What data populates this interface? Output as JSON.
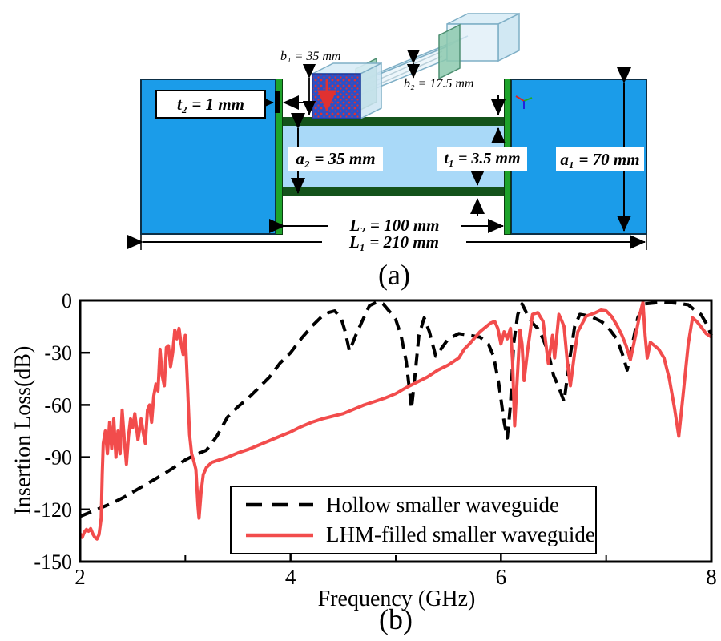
{
  "figure": {
    "caption_a": "(a)",
    "caption_b": "(b)"
  },
  "diagram": {
    "labels": {
      "t2": "t₂ = 1 mm",
      "b1": "b₁ = 35 mm",
      "b2": "b₂ = 17.5 mm",
      "a2": "a₂ = 35 mm",
      "t1": "t₁ = 3.5 mm",
      "a1": "a₁ = 70 mm",
      "L2": "L₂ = 100 mm",
      "L1": "L₁ = 210 mm"
    },
    "colors": {
      "outer_waveguide_blue": "#1b9ce9",
      "channel_light_blue": "#a9d9f8",
      "plate_green": "#1ea32b",
      "bar_dark_green": "#14531b",
      "inset_box_fill": "#d8ecf6",
      "inset_box_edge": "#7fafc6",
      "inset_flange_green": "#8cc9ae",
      "inset_port_face_blue": "#2b50c8",
      "inset_port_dots_red": "#e03131"
    }
  },
  "chart_data": {
    "type": "line",
    "title": "",
    "xlabel": "Frequency (GHz)",
    "ylabel": "Insertion Loss(dB)",
    "xlim": [
      2,
      8
    ],
    "ylim": [
      -150,
      0
    ],
    "xticks": [
      2,
      4,
      6,
      8
    ],
    "xticks_minor": [
      3,
      5,
      7
    ],
    "yticks": [
      0,
      -30,
      -60,
      -90,
      -120,
      -150
    ],
    "grid": false,
    "legend_position": "inside lower-center",
    "series": [
      {
        "name": "Hollow smaller waveguide",
        "color": "#000000",
        "style": "dashed",
        "points": [
          [
            2.0,
            -124
          ],
          [
            2.1,
            -121.5
          ],
          [
            2.2,
            -119
          ],
          [
            2.3,
            -116.5
          ],
          [
            2.4,
            -113.5
          ],
          [
            2.5,
            -110
          ],
          [
            2.6,
            -106.5
          ],
          [
            2.7,
            -103
          ],
          [
            2.8,
            -99.5
          ],
          [
            2.9,
            -95.5
          ],
          [
            3.0,
            -91.5
          ],
          [
            3.1,
            -88.5
          ],
          [
            3.2,
            -86
          ],
          [
            3.3,
            -78
          ],
          [
            3.4,
            -67
          ],
          [
            3.5,
            -61
          ],
          [
            3.6,
            -56
          ],
          [
            3.7,
            -50
          ],
          [
            3.8,
            -44
          ],
          [
            3.9,
            -36
          ],
          [
            4.0,
            -30
          ],
          [
            4.1,
            -22
          ],
          [
            4.2,
            -15
          ],
          [
            4.3,
            -9
          ],
          [
            4.36,
            -7
          ],
          [
            4.42,
            -6
          ],
          [
            4.48,
            -10
          ],
          [
            4.52,
            -18
          ],
          [
            4.56,
            -29
          ],
          [
            4.62,
            -20
          ],
          [
            4.68,
            -12
          ],
          [
            4.75,
            -3
          ],
          [
            4.82,
            -1
          ],
          [
            4.88,
            -2
          ],
          [
            4.95,
            -7
          ],
          [
            5.0,
            -11
          ],
          [
            5.05,
            -20
          ],
          [
            5.1,
            -35
          ],
          [
            5.15,
            -62
          ],
          [
            5.18,
            -45
          ],
          [
            5.22,
            -20
          ],
          [
            5.27,
            -10
          ],
          [
            5.32,
            -18
          ],
          [
            5.38,
            -32
          ],
          [
            5.44,
            -27
          ],
          [
            5.5,
            -22
          ],
          [
            5.6,
            -19
          ],
          [
            5.7,
            -20
          ],
          [
            5.8,
            -21
          ],
          [
            5.88,
            -25
          ],
          [
            5.93,
            -32
          ],
          [
            5.98,
            -48
          ],
          [
            6.03,
            -70
          ],
          [
            6.06,
            -79
          ],
          [
            6.09,
            -60
          ],
          [
            6.12,
            -25
          ],
          [
            6.16,
            -8
          ],
          [
            6.2,
            -2
          ],
          [
            6.25,
            -8
          ],
          [
            6.3,
            -13
          ],
          [
            6.35,
            -16
          ],
          [
            6.4,
            -22
          ],
          [
            6.45,
            -30
          ],
          [
            6.5,
            -43
          ],
          [
            6.55,
            -50
          ],
          [
            6.6,
            -58
          ],
          [
            6.65,
            -35
          ],
          [
            6.7,
            -15
          ],
          [
            6.75,
            -8
          ],
          [
            6.85,
            -9
          ],
          [
            6.95,
            -12
          ],
          [
            7.0,
            -14
          ],
          [
            7.05,
            -18
          ],
          [
            7.1,
            -22
          ],
          [
            7.15,
            -30
          ],
          [
            7.2,
            -40
          ],
          [
            7.25,
            -25
          ],
          [
            7.3,
            -10
          ],
          [
            7.37,
            -2
          ],
          [
            7.45,
            -1.5
          ],
          [
            7.55,
            -1
          ],
          [
            7.65,
            -1.5
          ],
          [
            7.78,
            -2.5
          ],
          [
            7.85,
            -6
          ],
          [
            7.9,
            -8
          ],
          [
            7.95,
            -13
          ],
          [
            8.0,
            -20
          ]
        ]
      },
      {
        "name": "LHM-filled smaller waveguide",
        "color": "#f24c4c",
        "style": "solid",
        "points": [
          [
            2.0,
            -134
          ],
          [
            2.02,
            -136
          ],
          [
            2.04,
            -133
          ],
          [
            2.06,
            -131.5
          ],
          [
            2.08,
            -132.5
          ],
          [
            2.1,
            -131
          ],
          [
            2.12,
            -134
          ],
          [
            2.14,
            -136
          ],
          [
            2.16,
            -137
          ],
          [
            2.18,
            -134.5
          ],
          [
            2.2,
            -125
          ],
          [
            2.21,
            -100
          ],
          [
            2.22,
            -82
          ],
          [
            2.24,
            -75
          ],
          [
            2.26,
            -88
          ],
          [
            2.28,
            -70
          ],
          [
            2.3,
            -85
          ],
          [
            2.32,
            -68
          ],
          [
            2.34,
            -90
          ],
          [
            2.36,
            -75
          ],
          [
            2.38,
            -88
          ],
          [
            2.4,
            -63
          ],
          [
            2.42,
            -80
          ],
          [
            2.44,
            -94
          ],
          [
            2.46,
            -78
          ],
          [
            2.48,
            -68
          ],
          [
            2.5,
            -73
          ],
          [
            2.52,
            -65
          ],
          [
            2.55,
            -80
          ],
          [
            2.58,
            -68
          ],
          [
            2.6,
            -76
          ],
          [
            2.62,
            -82
          ],
          [
            2.64,
            -63
          ],
          [
            2.66,
            -60
          ],
          [
            2.68,
            -70
          ],
          [
            2.7,
            -55
          ],
          [
            2.72,
            -48
          ],
          [
            2.74,
            -52
          ],
          [
            2.76,
            -28
          ],
          [
            2.78,
            -43
          ],
          [
            2.8,
            -49
          ],
          [
            2.82,
            -27
          ],
          [
            2.84,
            -26
          ],
          [
            2.86,
            -38
          ],
          [
            2.88,
            -30
          ],
          [
            2.9,
            -17
          ],
          [
            2.92,
            -22
          ],
          [
            2.94,
            -16
          ],
          [
            2.96,
            -25
          ],
          [
            2.98,
            -31
          ],
          [
            3.0,
            -20
          ],
          [
            3.02,
            -48
          ],
          [
            3.04,
            -77
          ],
          [
            3.06,
            -88
          ],
          [
            3.08,
            -92
          ],
          [
            3.1,
            -97
          ],
          [
            3.12,
            -118
          ],
          [
            3.13,
            -125
          ],
          [
            3.15,
            -110
          ],
          [
            3.17,
            -100
          ],
          [
            3.2,
            -96
          ],
          [
            3.25,
            -93
          ],
          [
            3.3,
            -92
          ],
          [
            3.35,
            -91
          ],
          [
            3.4,
            -90
          ],
          [
            3.5,
            -87.5
          ],
          [
            3.6,
            -85.5
          ],
          [
            3.7,
            -83
          ],
          [
            3.8,
            -80.5
          ],
          [
            3.9,
            -78
          ],
          [
            4.0,
            -75.5
          ],
          [
            4.1,
            -72.5
          ],
          [
            4.2,
            -70
          ],
          [
            4.3,
            -68
          ],
          [
            4.4,
            -66.5
          ],
          [
            4.5,
            -65
          ],
          [
            4.6,
            -62.5
          ],
          [
            4.7,
            -60
          ],
          [
            4.8,
            -58
          ],
          [
            4.9,
            -56
          ],
          [
            5.0,
            -53.5
          ],
          [
            5.1,
            -50
          ],
          [
            5.2,
            -47
          ],
          [
            5.3,
            -44
          ],
          [
            5.4,
            -40
          ],
          [
            5.5,
            -37
          ],
          [
            5.6,
            -33
          ],
          [
            5.65,
            -28
          ],
          [
            5.7,
            -25
          ],
          [
            5.8,
            -18
          ],
          [
            5.9,
            -13
          ],
          [
            5.94,
            -12
          ],
          [
            5.97,
            -16
          ],
          [
            6.0,
            -25
          ],
          [
            6.03,
            -18
          ],
          [
            6.06,
            -22
          ],
          [
            6.09,
            -16
          ],
          [
            6.11,
            -35
          ],
          [
            6.13,
            -72
          ],
          [
            6.15,
            -50
          ],
          [
            6.18,
            -17
          ],
          [
            6.2,
            -25
          ],
          [
            6.22,
            -46
          ],
          [
            6.25,
            -30
          ],
          [
            6.3,
            -8
          ],
          [
            6.35,
            -7
          ],
          [
            6.4,
            -12
          ],
          [
            6.45,
            -36
          ],
          [
            6.49,
            -20
          ],
          [
            6.51,
            -33
          ],
          [
            6.55,
            -8
          ],
          [
            6.58,
            -12
          ],
          [
            6.6,
            -15
          ],
          [
            6.63,
            -35
          ],
          [
            6.66,
            -49
          ],
          [
            6.7,
            -30
          ],
          [
            6.73,
            -18
          ],
          [
            6.81,
            -9
          ],
          [
            6.9,
            -7
          ],
          [
            6.95,
            -5.5
          ],
          [
            7.0,
            -6
          ],
          [
            7.05,
            -9
          ],
          [
            7.1,
            -14
          ],
          [
            7.15,
            -20
          ],
          [
            7.19,
            -26
          ],
          [
            7.23,
            -34
          ],
          [
            7.28,
            -20
          ],
          [
            7.32,
            -8
          ],
          [
            7.35,
            -1
          ],
          [
            7.37,
            -20
          ],
          [
            7.39,
            -33
          ],
          [
            7.42,
            -24
          ],
          [
            7.46,
            -26
          ],
          [
            7.5,
            -28
          ],
          [
            7.55,
            -33
          ],
          [
            7.6,
            -45
          ],
          [
            7.65,
            -62
          ],
          [
            7.69,
            -78
          ],
          [
            7.73,
            -55
          ],
          [
            7.78,
            -25
          ],
          [
            7.82,
            -10
          ],
          [
            7.86,
            -12
          ],
          [
            7.9,
            -15
          ],
          [
            7.95,
            -19
          ],
          [
            8.0,
            -21
          ]
        ]
      }
    ]
  }
}
